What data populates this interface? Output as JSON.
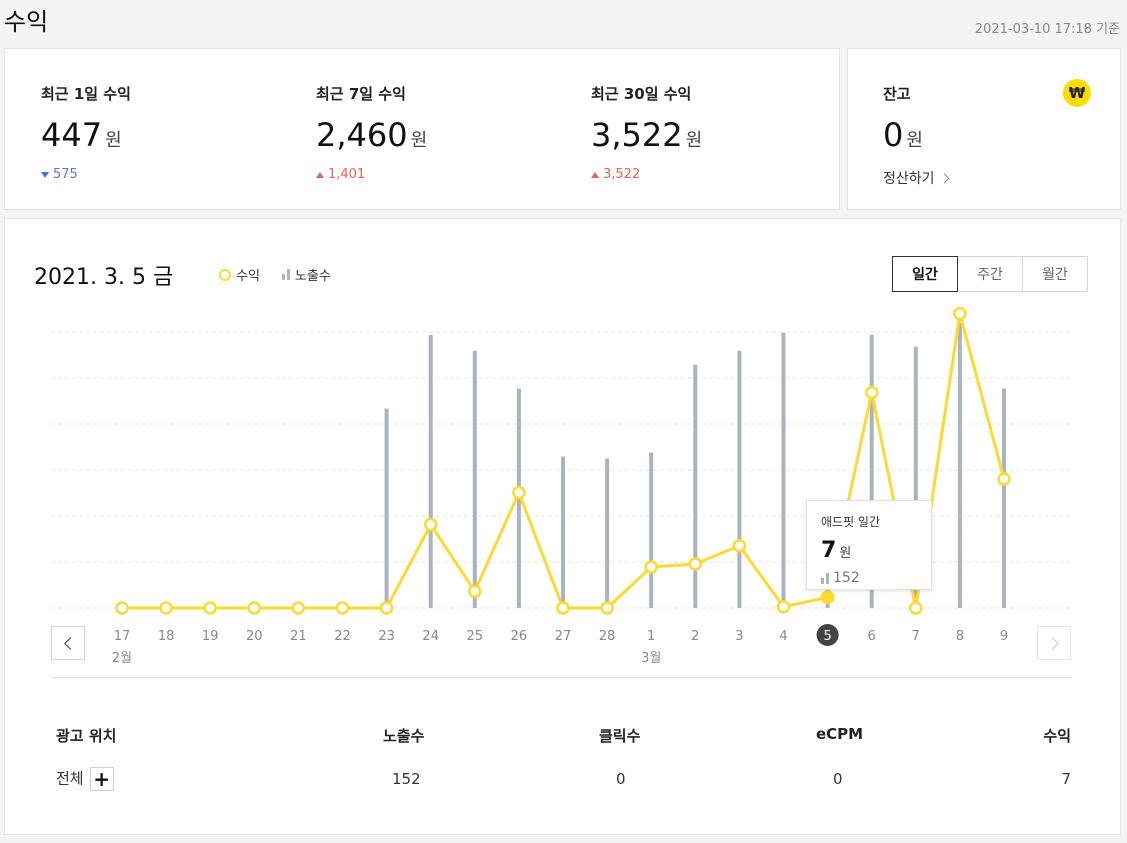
{
  "page": {
    "title": "수익",
    "updated": "2021-03-10 17:18 기준"
  },
  "summary": {
    "stats": [
      {
        "label": "최근 1일 수익",
        "value": "447",
        "unit": "원",
        "delta": "575",
        "direction": "down"
      },
      {
        "label": "최근 7일 수익",
        "value": "2,460",
        "unit": "원",
        "delta": "1,401",
        "direction": "up"
      },
      {
        "label": "최근 30일 수익",
        "value": "3,522",
        "unit": "원",
        "delta": "3,522",
        "direction": "up"
      }
    ]
  },
  "balance": {
    "label": "잔고",
    "value": "0",
    "unit": "원",
    "settle_label": "정산하기",
    "badge": "₩"
  },
  "chart_panel": {
    "date": "2021. 3. 5 금",
    "legend": {
      "revenue": "수익",
      "impressions": "노출수"
    },
    "tabs": [
      {
        "label": "일간",
        "active": true
      },
      {
        "label": "주간",
        "active": false
      },
      {
        "label": "월간",
        "active": false
      }
    ]
  },
  "tooltip": {
    "title": "애드핏 일간",
    "value": "7",
    "unit": "원",
    "impressions": "152"
  },
  "chart_data": {
    "type": "line",
    "categories": [
      "17",
      "18",
      "19",
      "20",
      "21",
      "22",
      "23",
      "24",
      "25",
      "26",
      "27",
      "28",
      "1",
      "2",
      "3",
      "4",
      "5",
      "6",
      "7",
      "8",
      "9"
    ],
    "month_labels": [
      {
        "label": "2월",
        "index": 0
      },
      {
        "label": "3월",
        "index": 12
      }
    ],
    "selected_index": 16,
    "series": [
      {
        "name": "수익",
        "type": "line",
        "color": "#ffd932",
        "values": [
          0,
          0,
          0,
          0,
          0,
          0,
          0,
          55,
          11,
          76,
          0,
          0,
          27,
          29,
          41,
          0.8,
          7,
          142,
          0,
          194,
          85
        ]
      },
      {
        "name": "노출수",
        "type": "bar",
        "color": "#aab4bf",
        "values": [
          0,
          0,
          0,
          0,
          0,
          0,
          1000,
          1370,
          1290,
          1100,
          760,
          750,
          780,
          1220,
          1290,
          1380,
          152,
          1370,
          1310,
          1430,
          1100
        ]
      }
    ],
    "revenue_ylim": [
      0,
      230
    ],
    "impressions_ylim": [
      0,
      1700
    ],
    "grid": true
  },
  "table": {
    "headers": [
      "광고 위치",
      "노출수",
      "클릭수",
      "eCPM",
      "수익"
    ],
    "rows": [
      {
        "location": "전체",
        "impressions": "152",
        "clicks": "0",
        "ecpm": "0",
        "revenue": "7"
      }
    ]
  }
}
